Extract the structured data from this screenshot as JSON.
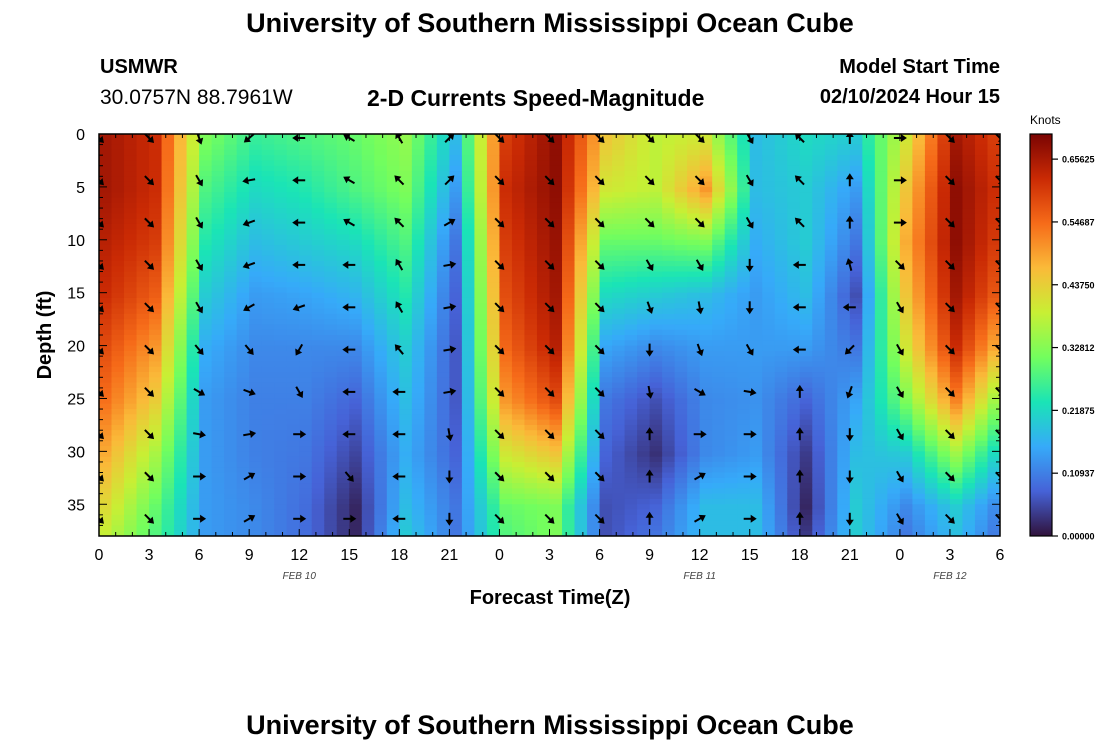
{
  "header": {
    "title": "University of Southern Mississippi Ocean Cube",
    "station": "USMWR",
    "coordinates": "30.0757N  88.7961W",
    "subtitle": "2-D Currents Speed-Magnitude",
    "model_start_label": "Model Start Time",
    "model_start_value": "02/10/2024 Hour 15"
  },
  "footer": {
    "title": "University of Southern Mississippi Ocean Cube"
  },
  "chart_data": {
    "type": "heatmap",
    "title": "2-D Currents Speed-Magnitude",
    "xlabel": "Forecast Time(Z)",
    "ylabel": "Depth (ft)",
    "x_range": [
      0,
      54
    ],
    "x_unit": "hours since FEB 10 00Z",
    "ylim": [
      0,
      38
    ],
    "y_inverted": true,
    "x_ticks": [
      0,
      3,
      6,
      9,
      12,
      15,
      18,
      21,
      24,
      27,
      30,
      33,
      36,
      39,
      42,
      45,
      48,
      51,
      54
    ],
    "x_tick_labels": [
      "0",
      "3",
      "6",
      "9",
      "12",
      "15",
      "18",
      "21",
      "0",
      "3",
      "6",
      "9",
      "12",
      "15",
      "18",
      "21",
      "0",
      "3",
      "6"
    ],
    "y_ticks": [
      0,
      5,
      10,
      15,
      20,
      25,
      30,
      35
    ],
    "y_tick_labels": [
      "0",
      "5",
      "10",
      "15",
      "20",
      "25",
      "30",
      "35"
    ],
    "day_labels": [
      {
        "hour": 12,
        "label": "FEB 10"
      },
      {
        "hour": 36,
        "label": "FEB 11"
      },
      {
        "hour": 51,
        "label": "FEB 12"
      }
    ],
    "colorbar": {
      "units": "Knots",
      "min": 0.0,
      "max": 0.7,
      "ticks": [
        0.0,
        0.109375,
        0.21875,
        0.328125,
        0.4375,
        0.546875,
        0.65625
      ],
      "tick_labels": [
        "0.00000",
        "0.10937",
        "0.21875",
        "0.32812",
        "0.43750",
        "0.54687",
        "0.65625"
      ],
      "colormap": [
        "#30123b",
        "#4662d7",
        "#36aaf9",
        "#1ae4b6",
        "#72fe5e",
        "#c8ef34",
        "#faba39",
        "#f66b19",
        "#ca2a04",
        "#7a0403"
      ]
    },
    "speed_profiles": {
      "depths_ft": [
        0,
        5,
        10,
        15,
        20,
        25,
        30,
        35,
        38
      ],
      "times_h": [
        0,
        3,
        6,
        9,
        12,
        15,
        18,
        21,
        24,
        27,
        30,
        33,
        36,
        39,
        42,
        45,
        48,
        51,
        54
      ],
      "knots": [
        [
          0.66,
          0.66,
          0.64,
          0.62,
          0.58,
          0.54,
          0.48,
          0.42,
          0.38
        ],
        [
          0.62,
          0.62,
          0.6,
          0.56,
          0.5,
          0.44,
          0.36,
          0.3,
          0.28
        ],
        [
          0.32,
          0.28,
          0.24,
          0.2,
          0.16,
          0.14,
          0.14,
          0.14,
          0.14
        ],
        [
          0.26,
          0.22,
          0.18,
          0.14,
          0.12,
          0.11,
          0.11,
          0.12,
          0.12
        ],
        [
          0.28,
          0.24,
          0.2,
          0.15,
          0.12,
          0.11,
          0.1,
          0.09,
          0.09
        ],
        [
          0.3,
          0.28,
          0.22,
          0.17,
          0.12,
          0.08,
          0.05,
          0.02,
          0.02
        ],
        [
          0.34,
          0.32,
          0.28,
          0.24,
          0.2,
          0.18,
          0.16,
          0.18,
          0.2
        ],
        [
          0.18,
          0.14,
          0.1,
          0.08,
          0.07,
          0.07,
          0.08,
          0.1,
          0.1
        ],
        [
          0.6,
          0.62,
          0.6,
          0.58,
          0.55,
          0.5,
          0.4,
          0.3,
          0.28
        ],
        [
          0.68,
          0.68,
          0.67,
          0.66,
          0.64,
          0.58,
          0.45,
          0.32,
          0.32
        ],
        [
          0.45,
          0.4,
          0.3,
          0.22,
          0.15,
          0.1,
          0.08,
          0.06,
          0.06
        ],
        [
          0.38,
          0.38,
          0.3,
          0.2,
          0.12,
          0.06,
          0.03,
          0.08,
          0.1
        ],
        [
          0.4,
          0.5,
          0.32,
          0.18,
          0.14,
          0.12,
          0.12,
          0.18,
          0.18
        ],
        [
          0.18,
          0.18,
          0.16,
          0.14,
          0.14,
          0.13,
          0.14,
          0.18,
          0.18
        ],
        [
          0.22,
          0.2,
          0.2,
          0.18,
          0.14,
          0.08,
          0.04,
          0.02,
          0.04
        ],
        [
          0.2,
          0.14,
          0.1,
          0.06,
          0.1,
          0.15,
          0.18,
          0.2,
          0.2
        ],
        [
          0.4,
          0.45,
          0.48,
          0.45,
          0.4,
          0.32,
          0.2,
          0.12,
          0.1
        ],
        [
          0.66,
          0.68,
          0.68,
          0.66,
          0.62,
          0.52,
          0.35,
          0.2,
          0.18
        ],
        [
          0.58,
          0.6,
          0.58,
          0.54,
          0.44,
          0.3,
          0.18,
          0.1,
          0.08
        ]
      ]
    },
    "current_vectors": {
      "depths_ft": [
        0,
        4,
        8,
        12,
        16,
        20,
        24,
        28,
        32,
        36
      ],
      "times_h": [
        0,
        3,
        6,
        9,
        12,
        15,
        18,
        21,
        24,
        27,
        30,
        33,
        36,
        39,
        42,
        45,
        48,
        51,
        54
      ],
      "direction_deg_toward": [
        [
          135,
          135,
          135,
          135,
          135,
          135,
          135,
          135,
          135,
          135
        ],
        [
          135,
          135,
          135,
          135,
          135,
          135,
          135,
          135,
          135,
          135
        ],
        [
          160,
          150,
          150,
          150,
          150,
          140,
          120,
          100,
          90,
          90
        ],
        [
          230,
          260,
          250,
          250,
          240,
          140,
          110,
          80,
          60,
          60
        ],
        [
          270,
          270,
          270,
          270,
          250,
          210,
          150,
          90,
          90,
          90
        ],
        [
          300,
          300,
          300,
          270,
          270,
          270,
          270,
          270,
          140,
          90
        ],
        [
          330,
          315,
          315,
          330,
          330,
          320,
          270,
          270,
          270,
          270
        ],
        [
          45,
          45,
          60,
          80,
          80,
          80,
          80,
          170,
          180,
          180
        ],
        [
          135,
          135,
          135,
          135,
          135,
          135,
          135,
          135,
          135,
          135
        ],
        [
          135,
          135,
          135,
          135,
          135,
          135,
          135,
          135,
          135,
          135
        ],
        [
          135,
          135,
          135,
          135,
          135,
          135,
          135,
          135,
          135,
          135
        ],
        [
          135,
          135,
          135,
          150,
          160,
          180,
          170,
          0,
          0,
          0
        ],
        [
          135,
          135,
          135,
          150,
          170,
          160,
          120,
          90,
          60,
          60
        ],
        [
          150,
          150,
          150,
          180,
          180,
          150,
          100,
          90,
          90,
          90
        ],
        [
          315,
          315,
          315,
          270,
          270,
          270,
          0,
          0,
          0,
          0
        ],
        [
          0,
          0,
          0,
          345,
          270,
          225,
          200,
          180,
          180,
          180
        ],
        [
          90,
          90,
          90,
          135,
          150,
          150,
          150,
          150,
          150,
          150
        ],
        [
          135,
          135,
          135,
          135,
          135,
          135,
          135,
          135,
          135,
          135
        ],
        [
          135,
          135,
          135,
          135,
          135,
          135,
          135,
          135,
          135,
          135
        ]
      ]
    }
  }
}
